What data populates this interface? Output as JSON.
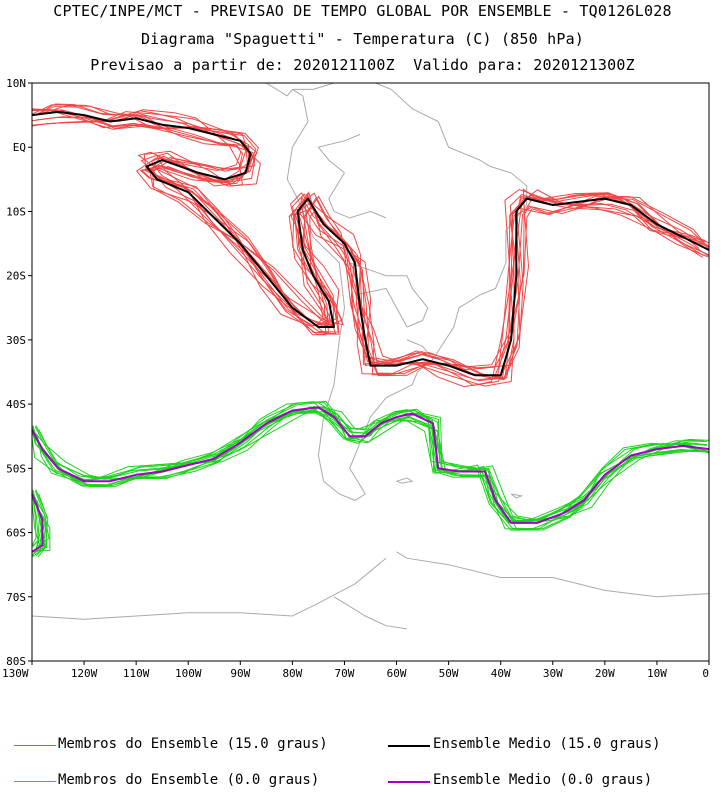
{
  "titles": {
    "line1": "CPTEC/INPE/MCT - PREVISAO DE TEMPO GLOBAL POR ENSEMBLE - TQ0126L028",
    "line2": "Diagrama \"Spaguetti\" - Temperatura (C) (850 hPa)",
    "line3": "Previsao a partir de: 2020121100Z  Valido para: 2020121300Z"
  },
  "colors": {
    "members_15": "#f04646",
    "mean_15": "#000000",
    "members_0": "#1ed21e",
    "mean_0": "#a000c8",
    "coast": "#aaaaaa",
    "frame": "#000000"
  },
  "chart_data": {
    "type": "line",
    "title": "Diagrama \"Spaguetti\" - Temperatura (C) (850 hPa)",
    "xlim": [
      -130,
      0
    ],
    "ylim": [
      -80,
      10
    ],
    "x_ticks": [
      "130W",
      "120W",
      "110W",
      "100W",
      "90W",
      "80W",
      "70W",
      "60W",
      "50W",
      "40W",
      "30W",
      "20W",
      "10W",
      "0"
    ],
    "y_ticks": [
      "10N",
      "EQ",
      "10S",
      "20S",
      "30S",
      "40S",
      "50S",
      "60S",
      "70S",
      "80S"
    ],
    "series": [
      {
        "name": "Ensemble Medio (15.0 graus)",
        "role": "mean",
        "color": "#000000",
        "segments": [
          [
            [
              -130,
              5
            ],
            [
              -125,
              5.5
            ],
            [
              -120,
              5
            ],
            [
              -115,
              4
            ],
            [
              -110,
              4.5
            ],
            [
              -105,
              3.5
            ],
            [
              -100,
              3
            ],
            [
              -95,
              2
            ],
            [
              -90,
              1
            ],
            [
              -88,
              -1
            ],
            [
              -89,
              -4
            ],
            [
              -93,
              -5
            ],
            [
              -98,
              -4
            ],
            [
              -105,
              -2
            ],
            [
              -108,
              -3
            ],
            [
              -106,
              -5
            ],
            [
              -100,
              -7
            ],
            [
              -95,
              -11
            ],
            [
              -90,
              -15
            ],
            [
              -85,
              -20
            ],
            [
              -80,
              -25
            ],
            [
              -75,
              -28
            ],
            [
              -72,
              -28
            ],
            [
              -73,
              -24
            ],
            [
              -76,
              -20
            ],
            [
              -78,
              -16
            ],
            [
              -79,
              -10
            ],
            [
              -77,
              -8
            ],
            [
              -74,
              -12
            ],
            [
              -70,
              -15
            ],
            [
              -68,
              -18
            ],
            [
              -67,
              -25
            ],
            [
              -66,
              -30
            ],
            [
              -65,
              -34
            ],
            [
              -60,
              -34
            ],
            [
              -55,
              -33
            ],
            [
              -50,
              -34
            ],
            [
              -45,
              -35.5
            ],
            [
              -40,
              -35.5
            ],
            [
              -38,
              -30
            ],
            [
              -37,
              -20
            ],
            [
              -37,
              -10
            ],
            [
              -35,
              -8
            ],
            [
              -30,
              -9
            ],
            [
              -25,
              -8.5
            ],
            [
              -20,
              -8
            ],
            [
              -15,
              -9
            ],
            [
              -10,
              -12
            ],
            [
              -5,
              -14
            ],
            [
              0,
              -16
            ]
          ]
        ]
      },
      {
        "name": "Ensemble Medio (0.0 graus)",
        "role": "mean",
        "color": "#a000c8",
        "segments": [
          [
            [
              -130,
              -44
            ],
            [
              -128,
              -47
            ],
            [
              -125,
              -50
            ],
            [
              -120,
              -52
            ],
            [
              -115,
              -52
            ],
            [
              -110,
              -51
            ],
            [
              -105,
              -50.5
            ],
            [
              -100,
              -49.5
            ],
            [
              -95,
              -48.5
            ],
            [
              -90,
              -46
            ],
            [
              -85,
              -43
            ],
            [
              -80,
              -41
            ],
            [
              -75,
              -40.5
            ],
            [
              -72,
              -42
            ],
            [
              -69,
              -45
            ],
            [
              -66,
              -45
            ],
            [
              -63,
              -43
            ],
            [
              -60,
              -42
            ],
            [
              -57,
              -41.5
            ],
            [
              -53,
              -43
            ],
            [
              -52,
              -50
            ],
            [
              -48,
              -50.5
            ],
            [
              -43,
              -50.5
            ],
            [
              -41,
              -55
            ],
            [
              -38,
              -58.5
            ],
            [
              -33,
              -58.5
            ],
            [
              -28,
              -57
            ],
            [
              -24,
              -55
            ],
            [
              -20,
              -51
            ],
            [
              -15,
              -48
            ],
            [
              -10,
              -47
            ],
            [
              -5,
              -46.5
            ],
            [
              0,
              -47
            ]
          ],
          [
            [
              -130,
              -54
            ],
            [
              -128,
              -58
            ],
            [
              -128,
              -62
            ],
            [
              -130,
              -63
            ]
          ]
        ]
      }
    ],
    "members": [
      {
        "name": "Membros do Ensemble (15.0 graus)",
        "color": "#f04646",
        "count": 14,
        "based_on": "Ensemble Medio (15.0 graus)",
        "spread_deg": 2.5
      },
      {
        "name": "Membros do Ensemble (0.0 graus)",
        "color": "#1ed21e",
        "count": 14,
        "based_on": "Ensemble Medio (0.0 graus)",
        "spread_deg": 1.8
      }
    ]
  },
  "legend": [
    {
      "label": "Membros do Ensemble (15.0 graus)",
      "color": "#f04646"
    },
    {
      "label": "Ensemble Medio (15.0 graus)",
      "color": "#000000"
    },
    {
      "label": "Membros do Ensemble (0.0 graus)",
      "color": "#1ed21e"
    },
    {
      "label": "Ensemble Medio (0.0 graus)",
      "color": "#a000c8"
    }
  ]
}
